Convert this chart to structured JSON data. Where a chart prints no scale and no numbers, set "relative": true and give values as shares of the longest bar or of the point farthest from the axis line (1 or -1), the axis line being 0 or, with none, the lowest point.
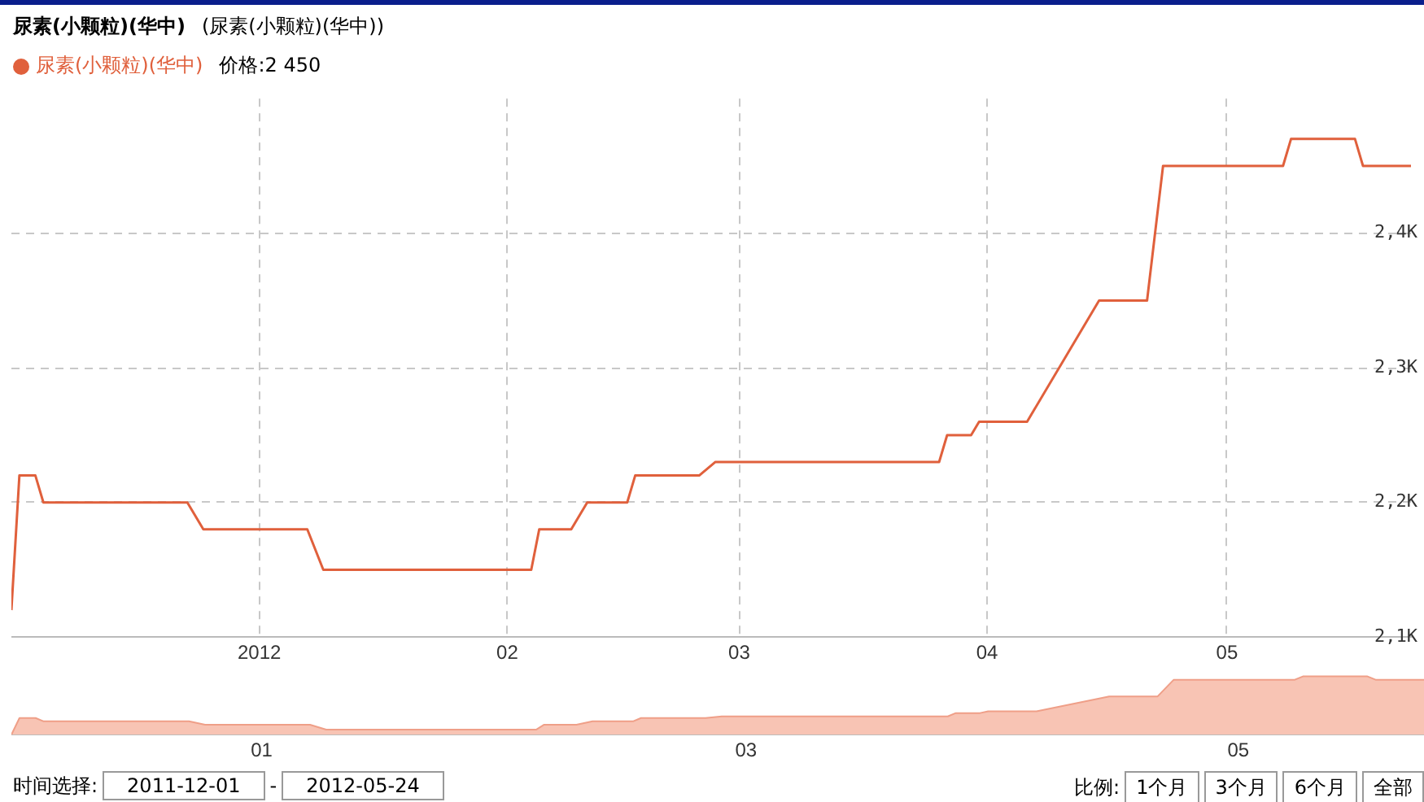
{
  "chart_data": [
    {
      "type": "line",
      "title": "尿素(小颗粒)(华中)",
      "subtitle": "(尿素(小颗粒)(华中))",
      "annotations": [
        "价格:2 450"
      ],
      "x": [
        "2011-12-01",
        "2011-12-02",
        "2011-12-04",
        "2011-12-05",
        "2011-12-23",
        "2011-12-25",
        "2012-01-07",
        "2012-01-09",
        "2012-02-04",
        "2012-02-05",
        "2012-02-09",
        "2012-02-11",
        "2012-02-16",
        "2012-02-17",
        "2012-02-25",
        "2012-02-27",
        "2012-03-26",
        "2012-03-27",
        "2012-03-30",
        "2012-03-31",
        "2012-04-06",
        "2012-04-15",
        "2012-04-21",
        "2012-04-23",
        "2012-05-08",
        "2012-05-09",
        "2012-05-17",
        "2012-05-18",
        "2012-05-24"
      ],
      "series": [
        {
          "name": "尿素(小颗粒)(华中)",
          "color": "#e0603c",
          "values": [
            2120,
            2220,
            2220,
            2200,
            2200,
            2180,
            2180,
            2150,
            2150,
            2180,
            2180,
            2200,
            2200,
            2220,
            2220,
            2230,
            2230,
            2250,
            2250,
            2260,
            2260,
            2350,
            2350,
            2450,
            2450,
            2470,
            2470,
            2450,
            2450
          ]
        }
      ],
      "xlim": [
        "2011-12-01",
        "2012-05-24"
      ],
      "xticks": [
        {
          "value": "2012-01-01",
          "label": "2012"
        },
        {
          "value": "2012-02-01",
          "label": "02"
        },
        {
          "value": "2012-03-01",
          "label": "03"
        },
        {
          "value": "2012-04-01",
          "label": "04"
        },
        {
          "value": "2012-05-01",
          "label": "05"
        }
      ],
      "ylim": [
        2100,
        2500
      ],
      "yticks": [
        {
          "value": 2100,
          "label": "2,1K"
        },
        {
          "value": 2200,
          "label": "2,2K"
        },
        {
          "value": 2300,
          "label": "2,3K"
        },
        {
          "value": 2400,
          "label": "2,4K"
        }
      ],
      "grid": true,
      "legend": "top left",
      "marker": "none",
      "line_style": "solid"
    },
    {
      "type": "area",
      "annotations": [
        "时间选择:",
        "2011-12-01",
        "-",
        "2012-05-24",
        "比例:",
        "1个月",
        "3个月",
        "6个月",
        "全部"
      ],
      "x": [
        "2011-12-01",
        "2011-12-02",
        "2011-12-04",
        "2011-12-05",
        "2011-12-23",
        "2011-12-25",
        "2012-01-07",
        "2012-01-09",
        "2012-02-04",
        "2012-02-05",
        "2012-02-09",
        "2012-02-11",
        "2012-02-16",
        "2012-02-17",
        "2012-02-25",
        "2012-02-27",
        "2012-03-26",
        "2012-03-27",
        "2012-03-30",
        "2012-03-31",
        "2012-04-06",
        "2012-04-15",
        "2012-04-21",
        "2012-04-23",
        "2012-05-08",
        "2012-05-09",
        "2012-05-17",
        "2012-05-18",
        "2012-05-24"
      ],
      "series": [
        {
          "color": "#f8c4b4",
          "values": [
            0,
            0.286,
            0.286,
            0.229,
            0.229,
            0.171,
            0.171,
            0.086,
            0.086,
            0.171,
            0.171,
            0.229,
            0.229,
            0.286,
            0.286,
            0.314,
            0.314,
            0.371,
            0.371,
            0.4,
            0.4,
            0.657,
            0.657,
            0.943,
            0.943,
            1,
            1,
            0.943,
            0.943
          ]
        }
      ],
      "xlim": [
        "2011-12-01",
        "2012-05-24"
      ],
      "xticks": [
        {
          "value": "2012-01-01",
          "label": "01"
        },
        {
          "value": "2012-03-01",
          "label": "03"
        },
        {
          "value": "2012-05-01",
          "label": "05"
        }
      ],
      "relative": true,
      "tick_labels": "x",
      "grid": false,
      "legend": false,
      "marker": "none"
    }
  ]
}
